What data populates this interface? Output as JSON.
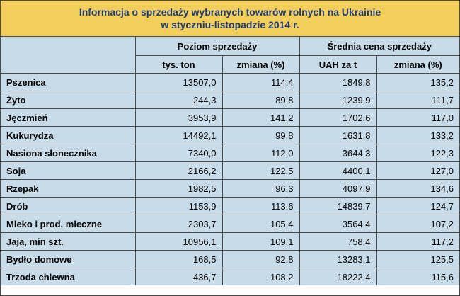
{
  "title": {
    "line1": "Informacja o sprzedaży wybranych towarów rolnych na Ukrainie",
    "line2": "w styczniu-listopadzie 2014 r."
  },
  "header": {
    "group1": "Poziom sprzedaży",
    "group2": "Średnia cena sprzedaży",
    "col1": "tys. ton",
    "col2": "zmiana (%)",
    "col3": "UAH za t",
    "col4": "zmiana (%)"
  },
  "rows": [
    {
      "name": "Pszenica",
      "v1": "13507,0",
      "v2": "114,4",
      "v3": "1849,8",
      "v4": "135,2"
    },
    {
      "name": "Żyto",
      "v1": "244,3",
      "v2": "89,8",
      "v3": "1239,9",
      "v4": "111,7"
    },
    {
      "name": "Jęczmień",
      "v1": "3953,9",
      "v2": "141,2",
      "v3": "1702,6",
      "v4": "117,0"
    },
    {
      "name": "Kukurydza",
      "v1": "14492,1",
      "v2": "99,8",
      "v3": "1631,8",
      "v4": "133,2"
    },
    {
      "name": "Nasiona słonecznika",
      "v1": "7340,0",
      "v2": "112,0",
      "v3": "3644,3",
      "v4": "122,3"
    },
    {
      "name": "Soja",
      "v1": "2166,2",
      "v2": "122,5",
      "v3": "4400,1",
      "v4": "127,0"
    },
    {
      "name": "Rzepak",
      "v1": "1982,5",
      "v2": "96,3",
      "v3": "4097,9",
      "v4": "134,6"
    },
    {
      "name": "Drób",
      "v1": "1153,9",
      "v2": "113,6",
      "v3": "14839,7",
      "v4": "124,7"
    },
    {
      "name": "Mleko i prod. mleczne",
      "v1": "2303,7",
      "v2": "105,4",
      "v3": "3564,4",
      "v4": "107,2"
    },
    {
      "name": "Jaja, min szt.",
      "v1": "10956,1",
      "v2": "109,1",
      "v3": "758,4",
      "v4": "117,2"
    },
    {
      "name": "Bydło domowe",
      "v1": "168,5",
      "v2": "92,8",
      "v3": "13283,1",
      "v4": "125,5"
    },
    {
      "name": "Trzoda chlewna",
      "v1": "436,7",
      "v2": "108,2",
      "v3": "18222,4",
      "v4": "115,6"
    }
  ],
  "colors": {
    "title_bg": "#f2cf5b",
    "title_text": "#1e3a7a",
    "cell_bg": "#c8dbe9",
    "border": "#4a4a4a"
  }
}
